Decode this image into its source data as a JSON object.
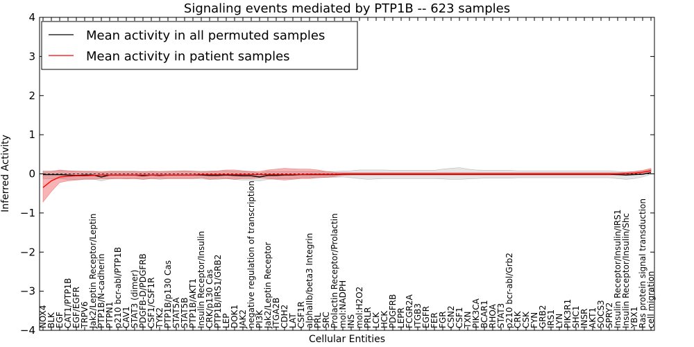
{
  "chart_data": {
    "type": "line",
    "title": "Signaling events mediated by PTP1B -- 623 samples",
    "xlabel": "Cellular Entities",
    "ylabel": "Inferred Activity",
    "ylim": [
      -4,
      4
    ],
    "yticks": [
      4,
      3,
      2,
      1,
      0,
      -1,
      -2,
      -3,
      -4
    ],
    "ytick_labels": [
      "4",
      "3",
      "2",
      "1",
      "0",
      "−1",
      "−2",
      "−3",
      "−4"
    ],
    "legend_position": "top-left",
    "categories": [
      "NOX4",
      "BLK",
      "EGF",
      "CAT1/PTP1B",
      "EGF/EGFR",
      "TRPV6",
      "Jak2/Leptin Receptor/Leptin",
      "PTP1B/N-cadherin",
      "PTPN1",
      "p210 bcr-abl/PTP1B",
      "CAV1",
      "STAT3 (dimer)",
      "PDGFB-D/PDGFRB",
      "CSF1/CSF1R",
      "TYK2",
      "PTP1B/p130 Cas",
      "STAT5A",
      "STAT5B",
      "PTP1B/AKT1",
      "Insulin Receptor/Insulin",
      "CRK/p130 Cas",
      "PTP1B/IRS1/GRB2",
      "LEP",
      "DOK1",
      "JAK2",
      "negative regulation of transcription",
      "PI3K",
      "Jak2/Leptin Receptor",
      "ITGA2B",
      "CDH2",
      "LAT",
      "CSF1R",
      "alphaIIb/beta3 Integrin",
      "PRL",
      "SRC",
      "Prolactin Receptor/Prolactin",
      "mol:NADPH",
      "INS",
      "mol:H2O2",
      "PRLR",
      "LCK",
      "HCK",
      "PDGFRB",
      "LEPR",
      "FCGR2A",
      "ITGB3",
      "EGFR",
      "FER",
      "FGR",
      "CSN2",
      "CSF1",
      "TXN",
      "PIK3CA",
      "BCAR1",
      "RHOA",
      "STAT3",
      "p210 bcr-abl/Grb2",
      "CRK",
      "CSK",
      "FYN",
      "GRB2",
      "IRS1",
      "LYN",
      "PIK3R1",
      "SHC1",
      "INSR",
      "AKT1",
      "SOCS3",
      "SPRY2",
      "Insulin Receptor/Insulin/IRS1",
      "Insulin Receptor/Insulin/Shc",
      "YBX1",
      "Ras protein signal transduction",
      "cell migration"
    ],
    "series": [
      {
        "name": "Mean activity in all permuted samples",
        "color": "#000000",
        "values": [
          -0.02,
          -0.02,
          -0.02,
          -0.03,
          -0.04,
          -0.03,
          -0.03,
          -0.08,
          -0.03,
          -0.03,
          -0.03,
          -0.03,
          -0.05,
          -0.03,
          -0.04,
          -0.03,
          -0.03,
          -0.03,
          -0.03,
          -0.03,
          -0.04,
          -0.04,
          -0.03,
          -0.04,
          -0.05,
          -0.05,
          -0.08,
          -0.04,
          -0.04,
          -0.03,
          -0.03,
          -0.02,
          -0.02,
          -0.02,
          -0.02,
          -0.02,
          -0.01,
          -0.01,
          -0.01,
          -0.01,
          -0.01,
          -0.01,
          -0.01,
          -0.01,
          -0.01,
          -0.01,
          -0.01,
          -0.01,
          -0.01,
          -0.01,
          -0.01,
          -0.01,
          -0.01,
          -0.01,
          -0.01,
          -0.01,
          -0.01,
          -0.01,
          -0.01,
          -0.01,
          -0.01,
          -0.01,
          -0.01,
          -0.01,
          -0.01,
          -0.01,
          -0.01,
          -0.01,
          -0.01,
          -0.02,
          -0.03,
          -0.02,
          -0.01,
          0.03
        ],
        "band_low": [
          -0.12,
          -0.12,
          -0.12,
          -0.14,
          -0.15,
          -0.13,
          -0.13,
          -0.18,
          -0.13,
          -0.12,
          -0.12,
          -0.12,
          -0.14,
          -0.12,
          -0.14,
          -0.12,
          -0.12,
          -0.12,
          -0.12,
          -0.13,
          -0.14,
          -0.14,
          -0.12,
          -0.14,
          -0.16,
          -0.16,
          -0.18,
          -0.14,
          -0.13,
          -0.12,
          -0.12,
          -0.1,
          -0.1,
          -0.1,
          -0.09,
          -0.09,
          -0.08,
          -0.1,
          -0.12,
          -0.14,
          -0.13,
          -0.12,
          -0.12,
          -0.12,
          -0.12,
          -0.12,
          -0.12,
          -0.12,
          -0.13,
          -0.14,
          -0.14,
          -0.13,
          -0.12,
          -0.11,
          -0.11,
          -0.11,
          -0.11,
          -0.1,
          -0.1,
          -0.1,
          -0.1,
          -0.1,
          -0.1,
          -0.1,
          -0.1,
          -0.1,
          -0.1,
          -0.1,
          -0.1,
          -0.12,
          -0.14,
          -0.12,
          -0.08,
          -0.01
        ],
        "band_high": [
          0.08,
          0.08,
          0.08,
          0.08,
          0.07,
          0.07,
          0.07,
          0.03,
          0.07,
          0.07,
          0.07,
          0.07,
          0.05,
          0.07,
          0.06,
          0.07,
          0.07,
          0.07,
          0.07,
          0.07,
          0.06,
          0.06,
          0.07,
          0.06,
          0.06,
          0.06,
          0.02,
          0.06,
          0.06,
          0.06,
          0.06,
          0.06,
          0.06,
          0.06,
          0.06,
          0.06,
          0.07,
          0.08,
          0.1,
          0.1,
          0.1,
          0.1,
          0.09,
          0.09,
          0.09,
          0.09,
          0.09,
          0.09,
          0.12,
          0.14,
          0.16,
          0.12,
          0.1,
          0.09,
          0.09,
          0.09,
          0.09,
          0.08,
          0.08,
          0.08,
          0.08,
          0.08,
          0.08,
          0.08,
          0.08,
          0.08,
          0.08,
          0.08,
          0.08,
          0.06,
          0.05,
          0.06,
          0.07,
          0.12
        ]
      },
      {
        "name": "Mean activity in patient samples",
        "color": "#ff0000",
        "values": [
          -0.35,
          -0.18,
          -0.08,
          -0.06,
          -0.05,
          -0.05,
          -0.04,
          -0.03,
          -0.03,
          -0.03,
          -0.03,
          -0.03,
          -0.03,
          -0.03,
          -0.03,
          -0.03,
          -0.03,
          -0.03,
          -0.03,
          -0.02,
          -0.02,
          -0.02,
          -0.02,
          -0.02,
          -0.02,
          -0.02,
          -0.02,
          -0.02,
          -0.02,
          -0.02,
          -0.02,
          -0.02,
          -0.01,
          -0.01,
          -0.01,
          -0.01,
          0.0,
          0.0,
          0.0,
          0.0,
          0.0,
          0.0,
          0.0,
          0.0,
          0.0,
          0.0,
          0.0,
          0.0,
          0.0,
          0.0,
          0.0,
          0.0,
          0.0,
          0.0,
          0.0,
          0.0,
          0.0,
          0.0,
          0.0,
          0.0,
          0.0,
          0.0,
          0.0,
          0.0,
          0.0,
          0.0,
          0.0,
          0.0,
          0.0,
          0.0,
          0.01,
          0.02,
          0.04,
          0.08
        ],
        "band_low": [
          -0.72,
          -0.45,
          -0.22,
          -0.18,
          -0.16,
          -0.14,
          -0.14,
          -0.12,
          -0.13,
          -0.12,
          -0.13,
          -0.12,
          -0.14,
          -0.12,
          -0.12,
          -0.12,
          -0.12,
          -0.12,
          -0.12,
          -0.1,
          -0.14,
          -0.12,
          -0.12,
          -0.14,
          -0.12,
          -0.12,
          -0.1,
          -0.12,
          -0.14,
          -0.16,
          -0.14,
          -0.12,
          -0.12,
          -0.1,
          -0.09,
          -0.07,
          -0.04,
          -0.03,
          -0.03,
          -0.03,
          -0.03,
          -0.03,
          -0.03,
          -0.03,
          -0.03,
          -0.03,
          -0.03,
          -0.03,
          -0.03,
          -0.03,
          -0.03,
          -0.03,
          -0.03,
          -0.03,
          -0.03,
          -0.03,
          -0.03,
          -0.03,
          -0.03,
          -0.03,
          -0.03,
          -0.03,
          -0.03,
          -0.03,
          -0.03,
          -0.03,
          -0.03,
          -0.03,
          -0.03,
          -0.03,
          -0.02,
          -0.01,
          0.0,
          0.04
        ],
        "band_high": [
          0.06,
          0.06,
          0.1,
          0.08,
          0.07,
          0.06,
          0.06,
          0.06,
          0.06,
          0.06,
          0.06,
          0.06,
          0.06,
          0.06,
          0.06,
          0.06,
          0.07,
          0.08,
          0.07,
          0.05,
          0.07,
          0.08,
          0.1,
          0.1,
          0.08,
          0.06,
          0.06,
          0.1,
          0.12,
          0.14,
          0.13,
          0.12,
          0.12,
          0.1,
          0.06,
          0.04,
          0.03,
          0.03,
          0.03,
          0.03,
          0.03,
          0.03,
          0.03,
          0.03,
          0.03,
          0.03,
          0.03,
          0.03,
          0.03,
          0.03,
          0.03,
          0.03,
          0.03,
          0.03,
          0.03,
          0.03,
          0.03,
          0.03,
          0.03,
          0.03,
          0.03,
          0.03,
          0.03,
          0.03,
          0.03,
          0.03,
          0.03,
          0.03,
          0.03,
          0.03,
          0.04,
          0.06,
          0.09,
          0.14
        ]
      }
    ]
  }
}
